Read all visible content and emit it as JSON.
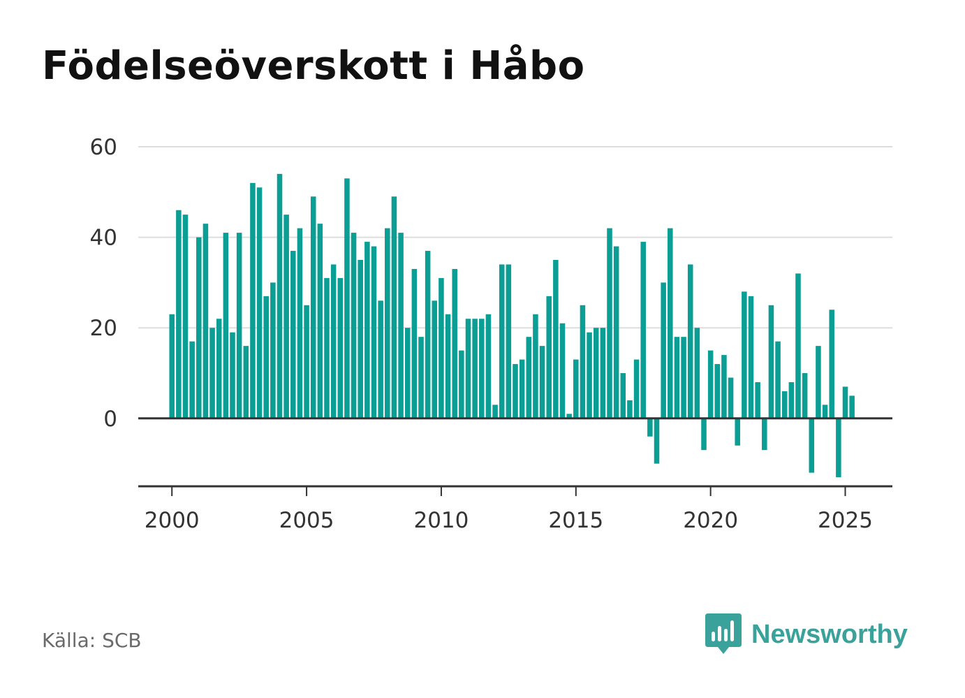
{
  "title": "Födelseöverskott i Håbo",
  "source": "Källa: SCB",
  "brand": {
    "name": "Newsworthy",
    "icon": "bar-chart-speech-bubble-icon",
    "color": "#3aa29a"
  },
  "chart_data": {
    "type": "bar",
    "bar_color": "#0a9e94",
    "xlabel": "",
    "ylabel": "",
    "x_start": 2000.0,
    "x_step": 0.25,
    "xlim": [
      1998.75,
      2026.75
    ],
    "ylim": [
      -15,
      60
    ],
    "x_ticks": [
      2000,
      2005,
      2010,
      2015,
      2020,
      2025
    ],
    "y_ticks": [
      0,
      20,
      40,
      60
    ],
    "grid": true,
    "legend": "none",
    "values": [
      23,
      46,
      45,
      17,
      40,
      43,
      20,
      22,
      41,
      19,
      41,
      16,
      52,
      51,
      27,
      30,
      54,
      45,
      37,
      42,
      25,
      49,
      43,
      31,
      34,
      31,
      53,
      41,
      35,
      39,
      38,
      26,
      42,
      49,
      41,
      20,
      33,
      18,
      37,
      26,
      31,
      23,
      33,
      15,
      22,
      22,
      22,
      23,
      3,
      34,
      34,
      12,
      13,
      18,
      23,
      16,
      27,
      35,
      21,
      1,
      13,
      25,
      19,
      20,
      20,
      42,
      38,
      10,
      4,
      13,
      39,
      -4,
      -10,
      30,
      42,
      18,
      18,
      34,
      20,
      -7,
      15,
      12,
      14,
      9,
      -6,
      28,
      27,
      8,
      -7,
      25,
      17,
      6,
      8,
      32,
      10,
      -12,
      16,
      3,
      24,
      -13,
      7,
      5
    ]
  }
}
